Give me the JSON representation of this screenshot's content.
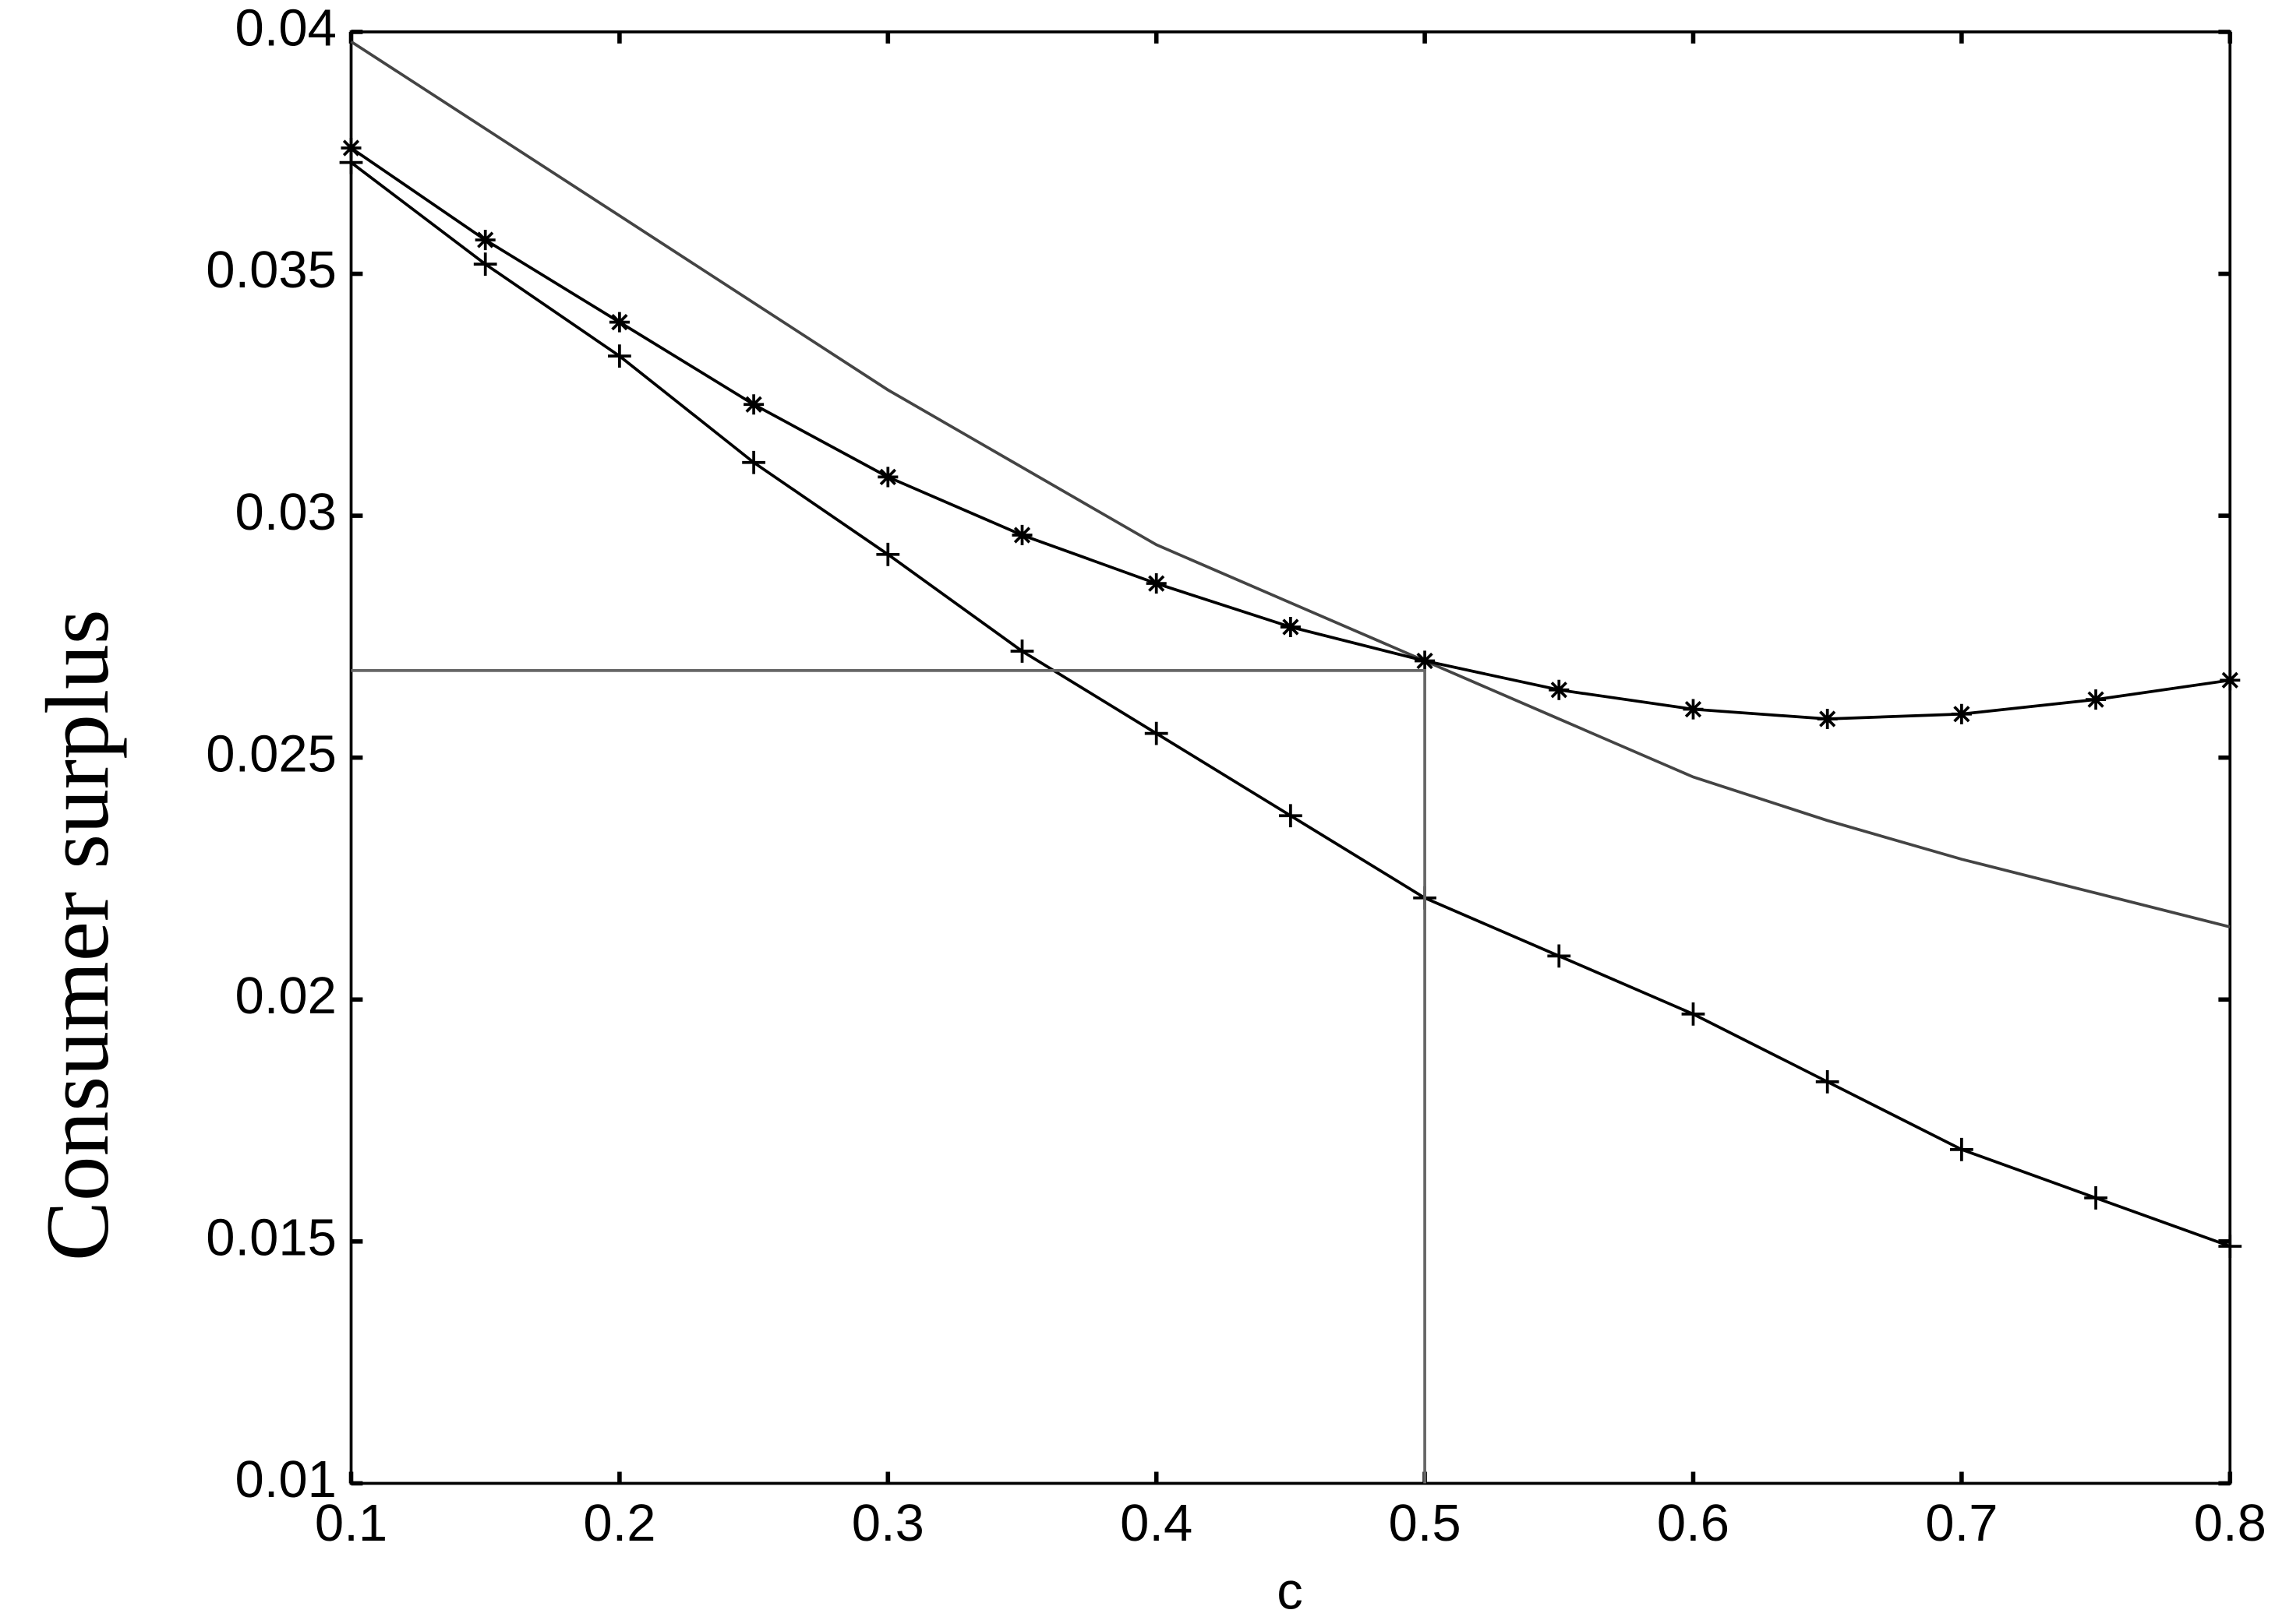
{
  "chart_data": {
    "type": "line",
    "x_label": "c",
    "y_label": "Consumer surplus",
    "x": [
      0.1,
      0.15,
      0.2,
      0.25,
      0.3,
      0.35,
      0.4,
      0.45,
      0.5,
      0.55,
      0.6,
      0.65,
      0.7,
      0.75,
      0.8
    ],
    "series": [
      {
        "color": "#444444",
        "marker": "none",
        "values": [
          0.0398,
          0.038,
          0.0362,
          0.0344,
          0.0326,
          0.031,
          0.0294,
          0.0282,
          0.027,
          0.0258,
          0.0246,
          0.0237,
          0.0229,
          0.0222,
          0.0215
        ]
      },
      {
        "color": "#000000",
        "marker": "star",
        "values": [
          0.0376,
          0.0357,
          0.034,
          0.0323,
          0.0308,
          0.0296,
          0.0286,
          0.0277,
          0.027,
          0.0264,
          0.026,
          0.0258,
          0.0259,
          0.0262,
          0.0266
        ]
      },
      {
        "color": "#000000",
        "marker": "plus",
        "values": [
          0.0373,
          0.0352,
          0.0333,
          0.0311,
          0.0292,
          0.0272,
          0.0255,
          0.0238,
          0.0221,
          0.0209,
          0.0197,
          0.0183,
          0.0169,
          0.0159,
          0.0149
        ]
      },
      {
        "color": "#666666",
        "marker": "none",
        "x": [
          0.1,
          0.5,
          0.5
        ],
        "values": [
          0.0268,
          0.0268,
          0.01
        ]
      }
    ],
    "xlim": [
      0.1,
      0.8
    ],
    "xticks": [
      0.1,
      0.2,
      0.3,
      0.4,
      0.5,
      0.6,
      0.7,
      0.8
    ],
    "ylim": [
      0.01,
      0.04
    ],
    "yticks": [
      0.01,
      0.015,
      0.02,
      0.025,
      0.03,
      0.035,
      0.04
    ],
    "grid": false
  }
}
